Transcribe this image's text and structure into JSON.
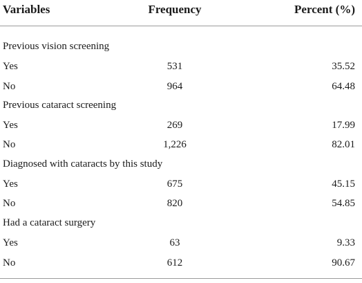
{
  "table": {
    "headers": {
      "variable": "Variables",
      "frequency": "Frequency",
      "percent": "Percent (%)"
    },
    "groups": [
      {
        "title": "Previous vision screening",
        "rows": [
          {
            "label": "Yes",
            "frequency": "531",
            "percent": "35.52"
          },
          {
            "label": "No",
            "frequency": "964",
            "percent": "64.48"
          }
        ]
      },
      {
        "title": "Previous cataract screening",
        "rows": [
          {
            "label": "Yes",
            "frequency": "269",
            "percent": "17.99"
          },
          {
            "label": "No",
            "frequency": "1,226",
            "percent": "82.01"
          }
        ]
      },
      {
        "title": "Diagnosed with cataracts by this study",
        "rows": [
          {
            "label": "Yes",
            "frequency": "675",
            "percent": "45.15"
          },
          {
            "label": "No",
            "frequency": "820",
            "percent": "54.85"
          }
        ]
      },
      {
        "title": "Had a cataract surgery",
        "rows": [
          {
            "label": "Yes",
            "frequency": "63",
            "percent": "9.33"
          },
          {
            "label": "No",
            "frequency": "612",
            "percent": "90.67"
          }
        ]
      }
    ]
  }
}
